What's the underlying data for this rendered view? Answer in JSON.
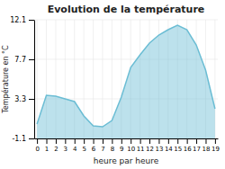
{
  "chart_data": {
    "type": "area",
    "title": "Evolution de la température",
    "x_label": "heure par heure",
    "y_label": "Température en °C",
    "x": [
      0,
      1,
      2,
      3,
      4,
      5,
      6,
      7,
      8,
      9,
      10,
      11,
      12,
      13,
      14,
      15,
      16,
      17,
      18,
      19
    ],
    "values": [
      0.5,
      3.7,
      3.6,
      3.3,
      3.0,
      1.4,
      0.3,
      0.2,
      0.9,
      3.5,
      6.8,
      8.2,
      9.5,
      10.4,
      11.0,
      11.5,
      11.0,
      9.3,
      6.5,
      2.2
    ],
    "color": "#6bbdd4",
    "xlim": [
      -0.3,
      19.3
    ],
    "xticks": [
      0,
      1,
      2,
      3,
      4,
      5,
      6,
      7,
      8,
      9,
      10,
      11,
      12,
      13,
      14,
      15,
      16,
      17,
      18,
      19
    ],
    "ylim": [
      -1.1,
      12.1
    ],
    "yticks": [
      -1.1,
      3.3,
      7.7,
      12.1
    ],
    "grid": true
  }
}
